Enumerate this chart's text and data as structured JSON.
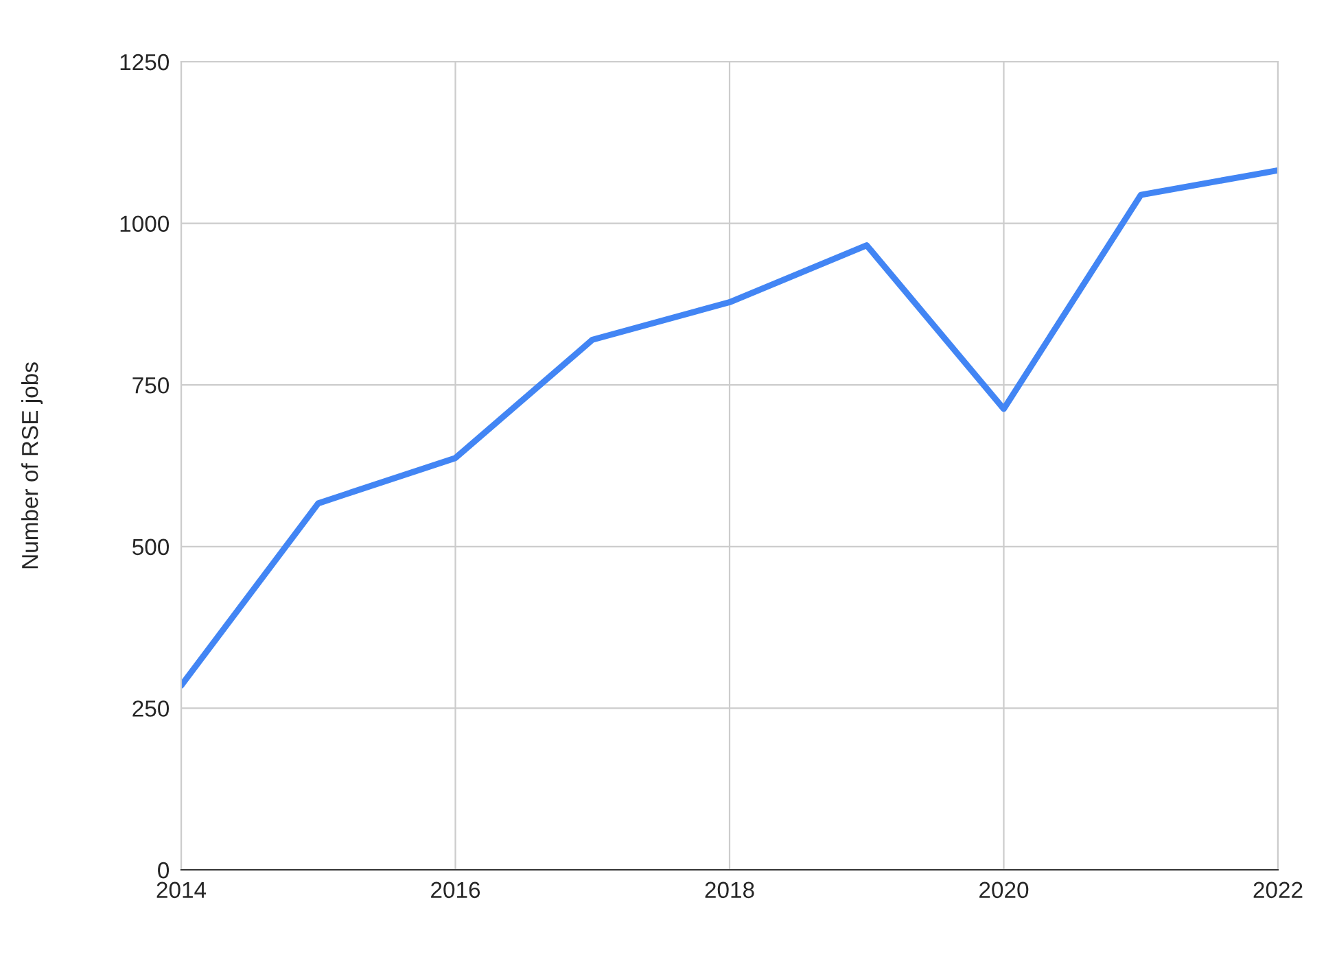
{
  "chart_data": {
    "type": "line",
    "ylabel": "Number of RSE jobs",
    "x": [
      2014,
      2015,
      2016,
      2017,
      2018,
      2019,
      2020,
      2021,
      2022
    ],
    "series": [
      {
        "color": "#4285f4",
        "values": [
          285,
          567,
          637,
          820,
          878,
          966,
          713,
          1044,
          1082
        ]
      }
    ],
    "xlim": [
      2014,
      2022
    ],
    "xticks": [
      2014,
      2016,
      2018,
      2020,
      2022
    ],
    "ylim": [
      0,
      1250
    ],
    "yticks": [
      0,
      250,
      500,
      750,
      1000,
      1250
    ],
    "grid": true,
    "marker": "none",
    "line_style": "solid"
  }
}
